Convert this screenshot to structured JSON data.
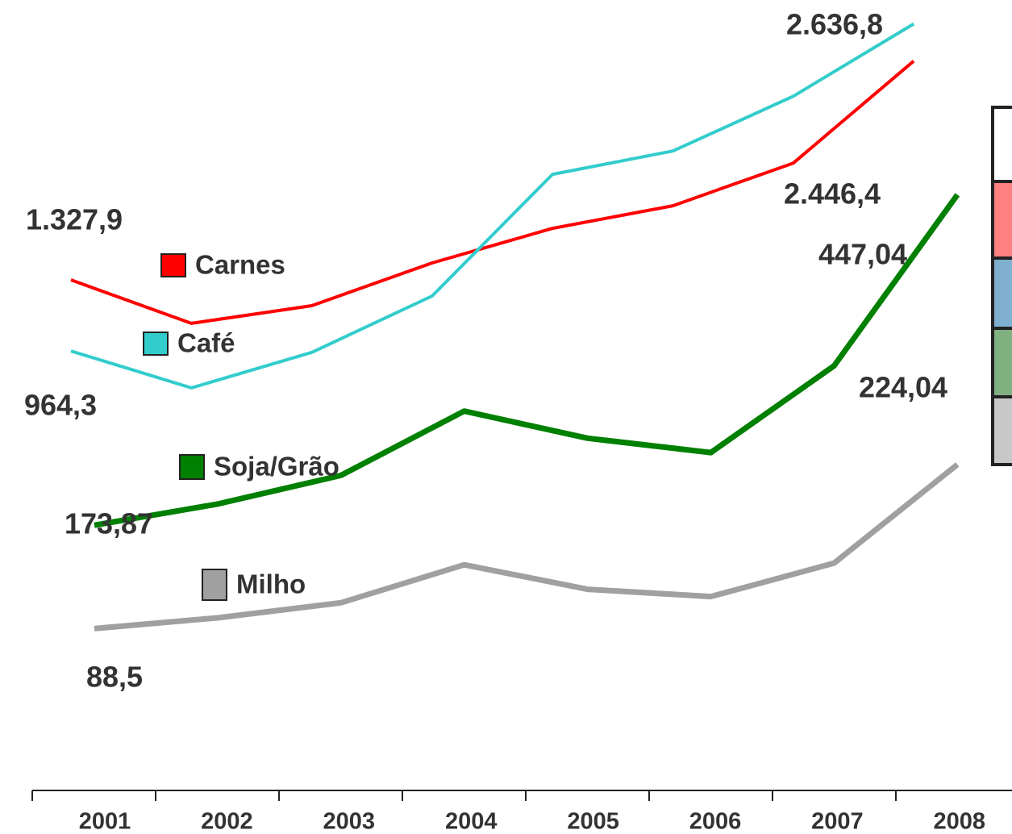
{
  "chart_data": {
    "type": "line",
    "categories": [
      "2001",
      "2002",
      "2003",
      "2004",
      "2005",
      "2006",
      "2007",
      "2008"
    ],
    "series": [
      {
        "name": "Carnes",
        "color": "#ff0000",
        "axis": "y",
        "values": [
          1327.9,
          1105.4,
          1196,
          1414.4,
          1591.5,
          1707,
          1925,
          2446.4
        ],
        "value_labels": [
          "1.327,9",
          null,
          null,
          null,
          null,
          null,
          null,
          "2.446,4"
        ]
      },
      {
        "name": "Café",
        "color": "#33cccc",
        "axis": "y",
        "values": [
          964.3,
          775.8,
          957,
          1245.5,
          1867.6,
          1987,
          2267,
          2636.8
        ],
        "value_labels": [
          "964,3",
          null,
          null,
          null,
          null,
          null,
          null,
          "2.636,8"
        ]
      },
      {
        "name": "Soja/Grão",
        "color": "#008000",
        "axis": "y2",
        "values": [
          173.87,
          191.4,
          215.1,
          268.2,
          245.8,
          233.9,
          305.7,
          447.04
        ],
        "value_labels": [
          "173,87",
          null,
          null,
          null,
          null,
          null,
          null,
          "447,04"
        ]
      },
      {
        "name": "Milho",
        "color": "#a0a0a0",
        "axis": "y2",
        "values": [
          88.5,
          97.3,
          109.8,
          141.2,
          120.9,
          114.9,
          142.6,
          224.04
        ],
        "value_labels": [
          "88,5",
          null,
          null,
          null,
          null,
          null,
          null,
          "224,04"
        ]
      }
    ],
    "ylim": [
      0,
      2800
    ],
    "y2lim": [
      0,
      600
    ]
  }
}
